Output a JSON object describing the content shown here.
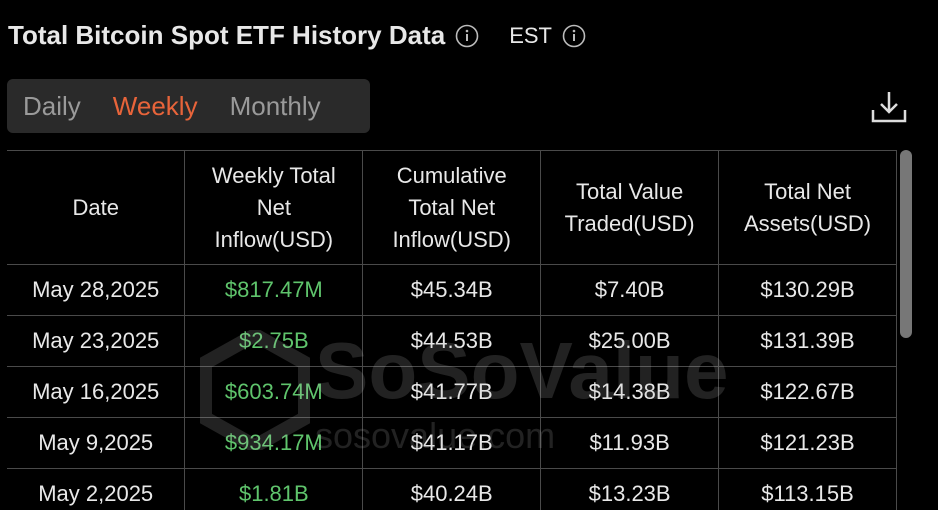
{
  "header": {
    "title": "Total Bitcoin Spot ETF History Data",
    "timezone": "EST"
  },
  "tabs": {
    "items": [
      "Daily",
      "Weekly",
      "Monthly"
    ],
    "active": 1
  },
  "table": {
    "headers": [
      "Date",
      "Weekly Total Net Inflow(USD)",
      "Cumulative Total Net Inflow(USD)",
      "Total Value Traded(USD)",
      "Total Net Assets(USD)"
    ],
    "rows": [
      [
        "May 28,2025",
        "$817.47M",
        "$45.34B",
        "$7.40B",
        "$130.29B"
      ],
      [
        "May 23,2025",
        "$2.75B",
        "$44.53B",
        "$25.00B",
        "$131.39B"
      ],
      [
        "May 16,2025",
        "$603.74M",
        "$41.77B",
        "$14.38B",
        "$122.67B"
      ],
      [
        "May 9,2025",
        "$934.17M",
        "$41.17B",
        "$11.93B",
        "$121.23B"
      ],
      [
        "May 2,2025",
        "$1.81B",
        "$40.24B",
        "$13.23B",
        "$113.15B"
      ]
    ]
  },
  "watermark": {
    "brand": "SoSoValue",
    "url": "sosovalue.com"
  }
}
